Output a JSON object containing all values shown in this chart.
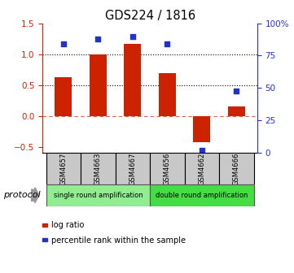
{
  "title": "GDS224 / 1816",
  "samples": [
    "GSM4657",
    "GSM4663",
    "GSM4667",
    "GSM4656",
    "GSM4662",
    "GSM4666"
  ],
  "log_ratio": [
    0.62,
    0.99,
    1.17,
    0.69,
    -0.43,
    0.15
  ],
  "percentile_rank": [
    84,
    88,
    90,
    84,
    2,
    48
  ],
  "bar_color": "#cc2200",
  "dot_color": "#2233cc",
  "ylim_left": [
    -0.6,
    1.5
  ],
  "ylim_right": [
    0,
    100
  ],
  "yticks_left": [
    -0.5,
    0.0,
    0.5,
    1.0,
    1.5
  ],
  "yticks_right": [
    0,
    25,
    50,
    75,
    100
  ],
  "ytick_labels_right": [
    "0",
    "25",
    "50",
    "75",
    "100%"
  ],
  "dotted_lines": [
    0.5,
    1.0
  ],
  "dashed_line": 0.0,
  "groups": [
    {
      "label": "single round amplification",
      "start": 0,
      "end": 3,
      "color": "#90ee90"
    },
    {
      "label": "double round amplification",
      "start": 3,
      "end": 6,
      "color": "#44dd44"
    }
  ],
  "legend_items": [
    {
      "label": "log ratio",
      "color": "#cc2200"
    },
    {
      "label": "percentile rank within the sample",
      "color": "#2233cc"
    }
  ]
}
